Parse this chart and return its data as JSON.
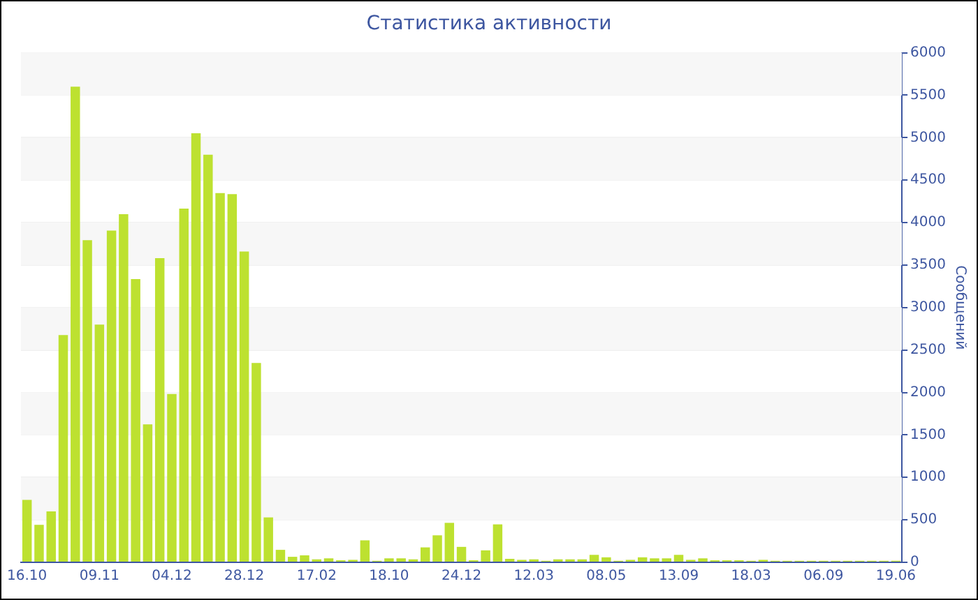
{
  "chart_data": {
    "type": "bar",
    "title": "Статистика активности",
    "ylabel": "Сообщений",
    "categories": [
      "16.10",
      null,
      null,
      null,
      null,
      null,
      "09.11",
      null,
      null,
      null,
      null,
      null,
      "04.12",
      null,
      null,
      null,
      null,
      null,
      "28.12",
      null,
      null,
      null,
      null,
      null,
      "17.02",
      null,
      null,
      null,
      null,
      null,
      "18.10",
      null,
      null,
      null,
      null,
      null,
      "24.12",
      null,
      null,
      null,
      null,
      null,
      "12.03",
      null,
      null,
      null,
      null,
      null,
      "08.05",
      null,
      null,
      null,
      null,
      null,
      "13.09",
      null,
      null,
      null,
      null,
      null,
      "18.03",
      null,
      null,
      null,
      null,
      null,
      "06.09",
      null,
      null,
      null,
      null,
      null,
      "19.06"
    ],
    "values": [
      735,
      441,
      600,
      2676,
      5600,
      3794,
      2800,
      3906,
      4100,
      3335,
      1624,
      3582,
      1982,
      4165,
      5053,
      4800,
      4347,
      4335,
      3659,
      2347,
      529,
      147,
      65,
      82,
      35,
      47,
      24,
      29,
      259,
      18,
      47,
      47,
      35,
      176,
      318,
      465,
      182,
      24,
      141,
      447,
      41,
      29,
      35,
      18,
      35,
      35,
      35,
      88,
      59,
      18,
      29,
      59,
      47,
      47,
      88,
      29,
      47,
      24,
      24,
      24,
      18,
      29,
      18,
      18,
      18,
      18,
      18,
      18,
      18,
      18,
      18,
      18,
      18
    ],
    "color": "#bde130",
    "ylim": [
      0,
      6000
    ],
    "yticks": [
      0,
      500,
      1000,
      1500,
      2000,
      2500,
      3000,
      3500,
      4000,
      4500,
      5000,
      5500,
      6000
    ],
    "grid": "y"
  }
}
